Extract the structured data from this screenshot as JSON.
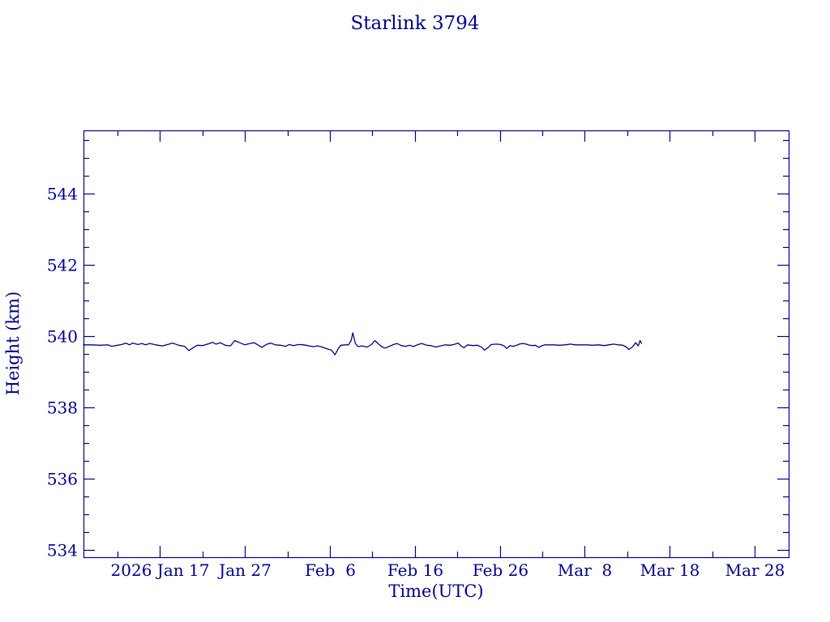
{
  "window": {
    "background": "#FFFFFF"
  },
  "chart_data": {
    "type": "line",
    "title": "Starlink 3794",
    "xlabel": "Time(UTC)",
    "ylabel": "Height (km)",
    "line_color": "#00008B",
    "axis_color": "#00008B",
    "grid": false,
    "legend": "none",
    "x_unit": "days since 2026 Jan 8 (UTC)",
    "xlim": [
      0,
      83
    ],
    "ylim": [
      533.8,
      545.78
    ],
    "x_major_ticks": [
      {
        "pos": 9,
        "label": "2026 Jan 17"
      },
      {
        "pos": 19,
        "label": "Jan 27"
      },
      {
        "pos": 29,
        "label": "Feb  6"
      },
      {
        "pos": 39,
        "label": "Feb 16"
      },
      {
        "pos": 49,
        "label": "Feb 26"
      },
      {
        "pos": 59,
        "label": "Mar  8"
      },
      {
        "pos": 69,
        "label": "Mar 18"
      },
      {
        "pos": 79,
        "label": "Mar 28"
      }
    ],
    "x_minor_ticks": [
      4,
      14,
      24,
      34,
      44,
      54,
      64,
      74
    ],
    "y_major_ticks": [
      {
        "pos": 534,
        "label": "534"
      },
      {
        "pos": 536,
        "label": "536"
      },
      {
        "pos": 538,
        "label": "538"
      },
      {
        "pos": 540,
        "label": "540"
      },
      {
        "pos": 542,
        "label": "542"
      },
      {
        "pos": 544,
        "label": "544"
      }
    ],
    "y_minor_ticks": [
      534.5,
      535,
      535.5,
      536.5,
      537,
      537.5,
      538.5,
      539,
      539.5,
      540.5,
      541,
      541.5,
      542.5,
      543,
      543.5,
      544.5,
      545,
      545.5
    ],
    "series": [
      {
        "name": "height",
        "points": [
          [
            0,
            539.76
          ],
          [
            1.0,
            539.76
          ],
          [
            2.0,
            539.75
          ],
          [
            2.9,
            539.76
          ],
          [
            3.3,
            539.72
          ],
          [
            3.8,
            539.74
          ],
          [
            4.5,
            539.77
          ],
          [
            5.0,
            539.81
          ],
          [
            5.4,
            539.76
          ],
          [
            5.8,
            539.81
          ],
          [
            6.4,
            539.77
          ],
          [
            6.9,
            539.8
          ],
          [
            7.3,
            539.76
          ],
          [
            7.8,
            539.8
          ],
          [
            8.5,
            539.76
          ],
          [
            9.3,
            539.73
          ],
          [
            9.9,
            539.77
          ],
          [
            10.5,
            539.81
          ],
          [
            11.2,
            539.75
          ],
          [
            11.9,
            539.72
          ],
          [
            12.4,
            539.6
          ],
          [
            12.9,
            539.68
          ],
          [
            13.4,
            539.75
          ],
          [
            14.0,
            539.74
          ],
          [
            14.6,
            539.78
          ],
          [
            15.2,
            539.83
          ],
          [
            15.6,
            539.78
          ],
          [
            16.1,
            539.82
          ],
          [
            16.7,
            539.75
          ],
          [
            17.3,
            539.73
          ],
          [
            17.8,
            539.88
          ],
          [
            18.4,
            539.82
          ],
          [
            19.0,
            539.76
          ],
          [
            19.6,
            539.8
          ],
          [
            20.1,
            539.82
          ],
          [
            20.6,
            539.75
          ],
          [
            21.0,
            539.69
          ],
          [
            21.5,
            539.77
          ],
          [
            22.0,
            539.81
          ],
          [
            22.6,
            539.76
          ],
          [
            23.2,
            539.75
          ],
          [
            23.8,
            539.72
          ],
          [
            24.2,
            539.77
          ],
          [
            24.7,
            539.74
          ],
          [
            25.3,
            539.77
          ],
          [
            25.9,
            539.76
          ],
          [
            26.4,
            539.74
          ],
          [
            27.0,
            539.71
          ],
          [
            27.6,
            539.73
          ],
          [
            28.2,
            539.69
          ],
          [
            28.7,
            539.65
          ],
          [
            29.2,
            539.61
          ],
          [
            29.6,
            539.48
          ],
          [
            30.0,
            539.66
          ],
          [
            30.3,
            539.75
          ],
          [
            30.8,
            539.76
          ],
          [
            31.2,
            539.76
          ],
          [
            31.5,
            539.88
          ],
          [
            31.7,
            540.1
          ],
          [
            32.0,
            539.8
          ],
          [
            32.3,
            539.71
          ],
          [
            32.8,
            539.73
          ],
          [
            33.4,
            539.7
          ],
          [
            33.9,
            539.77
          ],
          [
            34.3,
            539.88
          ],
          [
            34.7,
            539.79
          ],
          [
            35.1,
            539.71
          ],
          [
            35.5,
            539.67
          ],
          [
            36.0,
            539.72
          ],
          [
            36.5,
            539.77
          ],
          [
            36.9,
            539.8
          ],
          [
            37.4,
            539.74
          ],
          [
            37.9,
            539.72
          ],
          [
            38.4,
            539.75
          ],
          [
            38.8,
            539.71
          ],
          [
            39.3,
            539.76
          ],
          [
            39.8,
            539.8
          ],
          [
            40.4,
            539.75
          ],
          [
            40.9,
            539.74
          ],
          [
            41.5,
            539.7
          ],
          [
            42.0,
            539.73
          ],
          [
            42.6,
            539.76
          ],
          [
            43.1,
            539.75
          ],
          [
            43.6,
            539.77
          ],
          [
            44.1,
            539.81
          ],
          [
            44.5,
            539.72
          ],
          [
            44.8,
            539.68
          ],
          [
            45.2,
            539.76
          ],
          [
            45.8,
            539.74
          ],
          [
            46.4,
            539.75
          ],
          [
            46.9,
            539.69
          ],
          [
            47.2,
            539.61
          ],
          [
            47.6,
            539.68
          ],
          [
            48.0,
            539.77
          ],
          [
            48.6,
            539.78
          ],
          [
            49.1,
            539.77
          ],
          [
            49.5,
            539.73
          ],
          [
            49.8,
            539.66
          ],
          [
            50.2,
            539.74
          ],
          [
            50.6,
            539.72
          ],
          [
            51.0,
            539.75
          ],
          [
            51.3,
            539.78
          ],
          [
            51.7,
            539.8
          ],
          [
            52.1,
            539.78
          ],
          [
            52.5,
            539.75
          ],
          [
            52.9,
            539.74
          ],
          [
            53.2,
            539.75
          ],
          [
            53.6,
            539.69
          ],
          [
            53.9,
            539.73
          ],
          [
            54.3,
            539.76
          ],
          [
            54.9,
            539.76
          ],
          [
            55.4,
            539.76
          ],
          [
            56.0,
            539.75
          ],
          [
            56.7,
            539.76
          ],
          [
            57.3,
            539.78
          ],
          [
            57.9,
            539.76
          ],
          [
            58.6,
            539.76
          ],
          [
            59.3,
            539.76
          ],
          [
            59.9,
            539.75
          ],
          [
            60.6,
            539.76
          ],
          [
            61.3,
            539.74
          ],
          [
            61.8,
            539.76
          ],
          [
            62.4,
            539.78
          ],
          [
            63.0,
            539.76
          ],
          [
            63.5,
            539.75
          ],
          [
            63.9,
            539.7
          ],
          [
            64.2,
            539.63
          ],
          [
            64.6,
            539.7
          ],
          [
            65.0,
            539.82
          ],
          [
            65.3,
            539.73
          ],
          [
            65.5,
            539.88
          ],
          [
            65.7,
            539.8
          ]
        ]
      }
    ]
  }
}
